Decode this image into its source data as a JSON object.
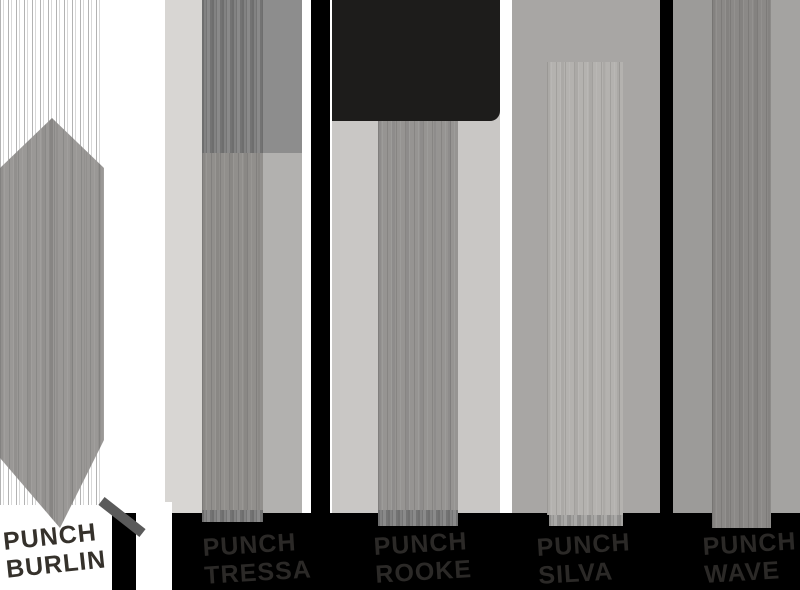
{
  "planks": [
    {
      "brand": "PUNCH",
      "model": "BURLIN"
    },
    {
      "brand": "PUNCH",
      "model": "TRESSA"
    },
    {
      "brand": "PUNCH",
      "model": "ROOKE"
    },
    {
      "brand": "PUNCH",
      "model": "SILVA"
    },
    {
      "brand": "PUNCH",
      "model": "WAVE"
    }
  ],
  "colors": {
    "background": "#ffffff",
    "bottom_strip": "#000000",
    "separator_bar": "#000000",
    "dark_block": "#1d1c1b",
    "label_text_on_white": "#35312b",
    "label_text_on_black": "#2b2927",
    "wood_burlin": "#9a9896",
    "wood_tressa": "#918f8c",
    "wood_rooke": "#969492",
    "wood_silva": "#b4b2af",
    "wood_wave": "#8b8987",
    "backdrop_tressa": "#d8d6d3",
    "backdrop_rooke": "#c9c7c5",
    "backdrop_silva": "#a8a6a4",
    "backdrop_wave": "#9c9b99"
  }
}
